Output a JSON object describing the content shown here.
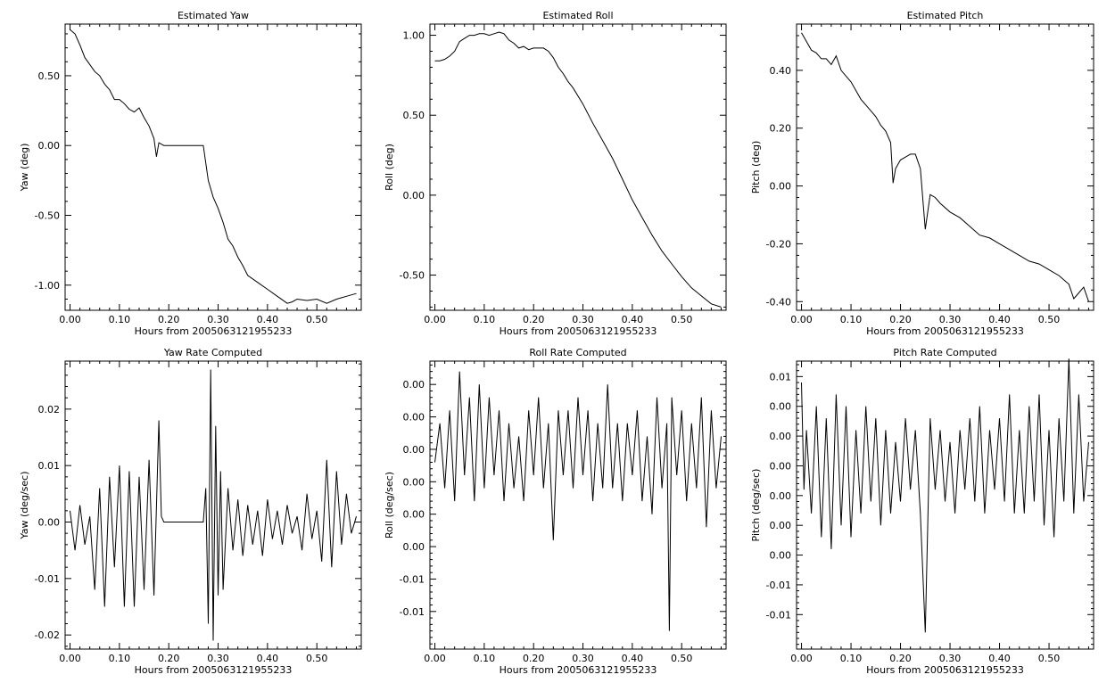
{
  "chart_data": [
    {
      "type": "line",
      "title": "Estimated Yaw",
      "xlabel": "Hours from 2005063121955233",
      "ylabel": "Yaw (deg)",
      "xlim": [
        -0.01,
        0.59
      ],
      "ylim": [
        -1.18,
        0.87
      ],
      "xticks": [
        0.0,
        0.1,
        0.2,
        0.3,
        0.4,
        0.5
      ],
      "xticklabels": [
        "0.00",
        "0.10",
        "0.20",
        "0.30",
        "0.40",
        "0.50"
      ],
      "yticks": [
        -1.0,
        -0.5,
        0.0,
        0.5
      ],
      "yticklabels": [
        "-1.00",
        "-0.50",
        "0.00",
        "0.50"
      ],
      "series": [
        {
          "x": [
            0.0,
            0.01,
            0.02,
            0.03,
            0.04,
            0.05,
            0.06,
            0.07,
            0.08,
            0.09,
            0.1,
            0.11,
            0.12,
            0.13,
            0.14,
            0.15,
            0.16,
            0.17,
            0.175,
            0.18,
            0.19,
            0.2,
            0.22,
            0.24,
            0.26,
            0.27,
            0.28,
            0.29,
            0.3,
            0.31,
            0.32,
            0.33,
            0.34,
            0.35,
            0.36,
            0.38,
            0.4,
            0.42,
            0.44,
            0.45,
            0.46,
            0.48,
            0.5,
            0.52,
            0.54,
            0.56,
            0.58
          ],
          "y": [
            0.83,
            0.8,
            0.72,
            0.63,
            0.58,
            0.53,
            0.5,
            0.44,
            0.4,
            0.33,
            0.33,
            0.3,
            0.26,
            0.24,
            0.27,
            0.2,
            0.14,
            0.05,
            -0.08,
            0.02,
            0.0,
            0.0,
            0.0,
            0.0,
            0.0,
            0.0,
            -0.25,
            -0.37,
            -0.45,
            -0.55,
            -0.67,
            -0.72,
            -0.8,
            -0.86,
            -0.93,
            -0.98,
            -1.03,
            -1.08,
            -1.13,
            -1.12,
            -1.1,
            -1.11,
            -1.1,
            -1.13,
            -1.1,
            -1.08,
            -1.06
          ]
        }
      ]
    },
    {
      "type": "line",
      "title": "Estimated Roll",
      "xlabel": "Hours from 2005063121955233",
      "ylabel": "Roll (deg)",
      "xlim": [
        -0.01,
        0.59
      ],
      "ylim": [
        -0.72,
        1.07
      ],
      "xticks": [
        0.0,
        0.1,
        0.2,
        0.3,
        0.4,
        0.5
      ],
      "xticklabels": [
        "0.00",
        "0.10",
        "0.20",
        "0.30",
        "0.40",
        "0.50"
      ],
      "yticks": [
        -0.5,
        0.0,
        0.5,
        1.0
      ],
      "yticklabels": [
        "-0.50",
        "0.00",
        "0.50",
        "1.00"
      ],
      "series": [
        {
          "x": [
            0.0,
            0.01,
            0.02,
            0.03,
            0.04,
            0.05,
            0.06,
            0.07,
            0.08,
            0.09,
            0.1,
            0.11,
            0.12,
            0.13,
            0.14,
            0.15,
            0.16,
            0.17,
            0.18,
            0.19,
            0.2,
            0.21,
            0.22,
            0.23,
            0.24,
            0.25,
            0.26,
            0.27,
            0.28,
            0.3,
            0.32,
            0.34,
            0.36,
            0.38,
            0.4,
            0.42,
            0.44,
            0.46,
            0.48,
            0.5,
            0.52,
            0.54,
            0.56,
            0.58
          ],
          "y": [
            0.84,
            0.84,
            0.85,
            0.87,
            0.9,
            0.96,
            0.98,
            1.0,
            1.0,
            1.01,
            1.01,
            1.0,
            1.01,
            1.02,
            1.01,
            0.97,
            0.95,
            0.92,
            0.93,
            0.91,
            0.92,
            0.92,
            0.92,
            0.9,
            0.86,
            0.8,
            0.76,
            0.71,
            0.67,
            0.57,
            0.45,
            0.34,
            0.23,
            0.1,
            -0.03,
            -0.14,
            -0.25,
            -0.35,
            -0.43,
            -0.51,
            -0.58,
            -0.63,
            -0.68,
            -0.7
          ]
        }
      ]
    },
    {
      "type": "line",
      "title": "Estimated Pitch",
      "xlabel": "Hours from 2005063121955233",
      "ylabel": "Pitch (deg)",
      "xlim": [
        -0.01,
        0.59
      ],
      "ylim": [
        -0.43,
        0.56
      ],
      "xticks": [
        0.0,
        0.1,
        0.2,
        0.3,
        0.4,
        0.5
      ],
      "xticklabels": [
        "0.00",
        "0.10",
        "0.20",
        "0.30",
        "0.40",
        "0.50"
      ],
      "yticks": [
        -0.4,
        -0.2,
        0.0,
        0.2,
        0.4
      ],
      "yticklabels": [
        "-0.40",
        "-0.20",
        "0.00",
        "0.20",
        "0.40"
      ],
      "series": [
        {
          "x": [
            0.0,
            0.01,
            0.02,
            0.03,
            0.04,
            0.05,
            0.06,
            0.07,
            0.08,
            0.09,
            0.1,
            0.11,
            0.12,
            0.13,
            0.14,
            0.15,
            0.16,
            0.17,
            0.18,
            0.185,
            0.19,
            0.2,
            0.21,
            0.22,
            0.23,
            0.24,
            0.25,
            0.26,
            0.27,
            0.28,
            0.3,
            0.32,
            0.34,
            0.36,
            0.38,
            0.4,
            0.42,
            0.44,
            0.46,
            0.48,
            0.5,
            0.52,
            0.54,
            0.55,
            0.56,
            0.57,
            0.58
          ],
          "y": [
            0.53,
            0.5,
            0.47,
            0.46,
            0.44,
            0.44,
            0.42,
            0.45,
            0.4,
            0.38,
            0.36,
            0.33,
            0.3,
            0.28,
            0.26,
            0.24,
            0.21,
            0.19,
            0.15,
            0.01,
            0.06,
            0.09,
            0.1,
            0.11,
            0.11,
            0.06,
            -0.15,
            -0.03,
            -0.04,
            -0.06,
            -0.09,
            -0.11,
            -0.14,
            -0.17,
            -0.18,
            -0.2,
            -0.22,
            -0.24,
            -0.26,
            -0.27,
            -0.29,
            -0.31,
            -0.34,
            -0.39,
            -0.37,
            -0.35,
            -0.4
          ]
        }
      ]
    },
    {
      "type": "line",
      "title": "Yaw Rate Computed",
      "xlabel": "Hours from 2005063121955233",
      "ylabel": "Yaw (deg/sec)",
      "xlim": [
        -0.01,
        0.59
      ],
      "ylim": [
        -0.0225,
        0.0285
      ],
      "xticks": [
        0.0,
        0.1,
        0.2,
        0.3,
        0.4,
        0.5
      ],
      "xticklabels": [
        "0.00",
        "0.10",
        "0.20",
        "0.30",
        "0.40",
        "0.50"
      ],
      "yticks": [
        -0.02,
        -0.01,
        0.0,
        0.01,
        0.02
      ],
      "yticklabels": [
        "-0.02",
        "-0.01",
        "0.00",
        "0.01",
        "0.02"
      ],
      "series": [
        {
          "x": [
            0.0,
            0.01,
            0.02,
            0.03,
            0.04,
            0.05,
            0.06,
            0.07,
            0.08,
            0.09,
            0.1,
            0.11,
            0.12,
            0.13,
            0.14,
            0.15,
            0.16,
            0.17,
            0.18,
            0.185,
            0.19,
            0.22,
            0.25,
            0.27,
            0.275,
            0.28,
            0.285,
            0.29,
            0.295,
            0.3,
            0.305,
            0.31,
            0.32,
            0.33,
            0.34,
            0.35,
            0.36,
            0.37,
            0.38,
            0.39,
            0.4,
            0.41,
            0.42,
            0.43,
            0.44,
            0.45,
            0.46,
            0.47,
            0.48,
            0.49,
            0.5,
            0.51,
            0.52,
            0.53,
            0.54,
            0.55,
            0.56,
            0.57,
            0.58
          ],
          "y": [
            0.002,
            -0.005,
            0.003,
            -0.004,
            0.001,
            -0.012,
            0.006,
            -0.015,
            0.008,
            -0.008,
            0.01,
            -0.015,
            0.009,
            -0.015,
            0.008,
            -0.012,
            0.011,
            -0.013,
            0.018,
            0.001,
            0.0,
            0.0,
            0.0,
            0.0,
            0.006,
            -0.018,
            0.027,
            -0.021,
            0.017,
            -0.013,
            0.009,
            -0.012,
            0.006,
            -0.005,
            0.004,
            -0.006,
            0.003,
            -0.004,
            0.002,
            -0.006,
            0.004,
            -0.003,
            0.002,
            -0.004,
            0.003,
            -0.002,
            0.001,
            -0.005,
            0.005,
            -0.003,
            0.002,
            -0.007,
            0.011,
            -0.008,
            0.009,
            -0.004,
            0.005,
            -0.002,
            0.001
          ]
        }
      ]
    },
    {
      "type": "line",
      "title": "Roll Rate Computed",
      "xlabel": "Hours from 2005063121955233",
      "ylabel": "Roll (deg/sec)",
      "xlim": [
        -0.01,
        0.59
      ],
      "ylim": [
        -0.0154,
        0.0068
      ],
      "xticks": [
        0.0,
        0.1,
        0.2,
        0.3,
        0.4,
        0.5
      ],
      "xticklabels": [
        "0.00",
        "0.10",
        "0.20",
        "0.30",
        "0.40",
        "0.50"
      ],
      "yticks": [
        -0.0125,
        -0.01,
        -0.0075,
        -0.005,
        -0.0025,
        0.0,
        0.0025,
        0.005
      ],
      "yticklabels": [
        "-0.01",
        "-0.01",
        "0.00",
        "0.00",
        "0.00",
        "0.00",
        "0.00",
        "0.00"
      ],
      "series": [
        {
          "x": [
            0.0,
            0.01,
            0.02,
            0.03,
            0.04,
            0.05,
            0.06,
            0.07,
            0.08,
            0.09,
            0.1,
            0.11,
            0.12,
            0.13,
            0.14,
            0.15,
            0.16,
            0.17,
            0.18,
            0.19,
            0.2,
            0.21,
            0.22,
            0.23,
            0.24,
            0.25,
            0.26,
            0.27,
            0.28,
            0.29,
            0.3,
            0.31,
            0.32,
            0.33,
            0.34,
            0.35,
            0.36,
            0.37,
            0.38,
            0.39,
            0.4,
            0.41,
            0.42,
            0.43,
            0.44,
            0.45,
            0.46,
            0.47,
            0.475,
            0.48,
            0.49,
            0.5,
            0.51,
            0.52,
            0.53,
            0.54,
            0.55,
            0.56,
            0.57,
            0.58
          ],
          "y": [
            -0.001,
            0.002,
            -0.003,
            0.003,
            -0.004,
            0.006,
            -0.002,
            0.004,
            -0.004,
            0.005,
            -0.003,
            0.004,
            -0.002,
            0.003,
            -0.004,
            0.002,
            -0.003,
            0.001,
            -0.004,
            0.003,
            -0.002,
            0.004,
            -0.003,
            0.002,
            -0.007,
            0.003,
            -0.002,
            0.003,
            -0.003,
            0.004,
            -0.002,
            0.003,
            -0.004,
            0.002,
            -0.003,
            0.005,
            -0.003,
            0.002,
            -0.004,
            0.002,
            -0.002,
            0.003,
            -0.004,
            0.001,
            -0.005,
            0.004,
            -0.003,
            0.002,
            -0.014,
            0.004,
            -0.002,
            0.003,
            -0.004,
            0.002,
            -0.003,
            0.004,
            -0.006,
            0.003,
            -0.003,
            0.001
          ]
        }
      ]
    },
    {
      "type": "line",
      "title": "Pitch Rate Computed",
      "xlabel": "Hours from 2005063121955233",
      "ylabel": "Pitch (deg/sec)",
      "xlim": [
        -0.01,
        0.59
      ],
      "ylim": [
        -0.0154,
        0.0088
      ],
      "xticks": [
        0.0,
        0.1,
        0.2,
        0.3,
        0.4,
        0.5
      ],
      "xticklabels": [
        "0.00",
        "0.10",
        "0.20",
        "0.30",
        "0.40",
        "0.50"
      ],
      "yticks": [
        -0.0125,
        -0.01,
        -0.0075,
        -0.005,
        -0.0025,
        0.0,
        0.0025,
        0.005,
        0.0075
      ],
      "yticklabels": [
        "-0.01",
        "-0.01",
        "0.00",
        "0.00",
        "0.00",
        "0.00",
        "0.00",
        "0.00",
        "0.01"
      ],
      "series": [
        {
          "x": [
            0.0,
            0.005,
            0.01,
            0.02,
            0.03,
            0.04,
            0.05,
            0.06,
            0.07,
            0.08,
            0.09,
            0.1,
            0.11,
            0.12,
            0.13,
            0.14,
            0.15,
            0.16,
            0.17,
            0.18,
            0.19,
            0.2,
            0.21,
            0.22,
            0.23,
            0.24,
            0.25,
            0.26,
            0.27,
            0.28,
            0.29,
            0.3,
            0.31,
            0.32,
            0.33,
            0.34,
            0.35,
            0.36,
            0.37,
            0.38,
            0.39,
            0.4,
            0.41,
            0.42,
            0.43,
            0.44,
            0.45,
            0.46,
            0.47,
            0.48,
            0.49,
            0.5,
            0.51,
            0.52,
            0.53,
            0.54,
            0.55,
            0.56,
            0.57,
            0.58
          ],
          "y": [
            0.007,
            -0.002,
            0.003,
            -0.004,
            0.005,
            -0.006,
            0.004,
            -0.007,
            0.006,
            -0.005,
            0.005,
            -0.006,
            0.003,
            -0.004,
            0.005,
            -0.003,
            0.004,
            -0.005,
            0.003,
            -0.004,
            0.002,
            -0.003,
            0.004,
            -0.002,
            0.003,
            -0.004,
            -0.014,
            0.004,
            -0.002,
            0.003,
            -0.003,
            0.002,
            -0.004,
            0.003,
            -0.002,
            0.004,
            -0.003,
            0.005,
            -0.004,
            0.003,
            -0.002,
            0.004,
            -0.003,
            0.006,
            -0.004,
            0.003,
            -0.004,
            0.005,
            -0.003,
            0.006,
            -0.005,
            0.003,
            -0.006,
            0.004,
            -0.003,
            0.009,
            -0.004,
            0.006,
            -0.003,
            0.002
          ]
        }
      ]
    }
  ]
}
